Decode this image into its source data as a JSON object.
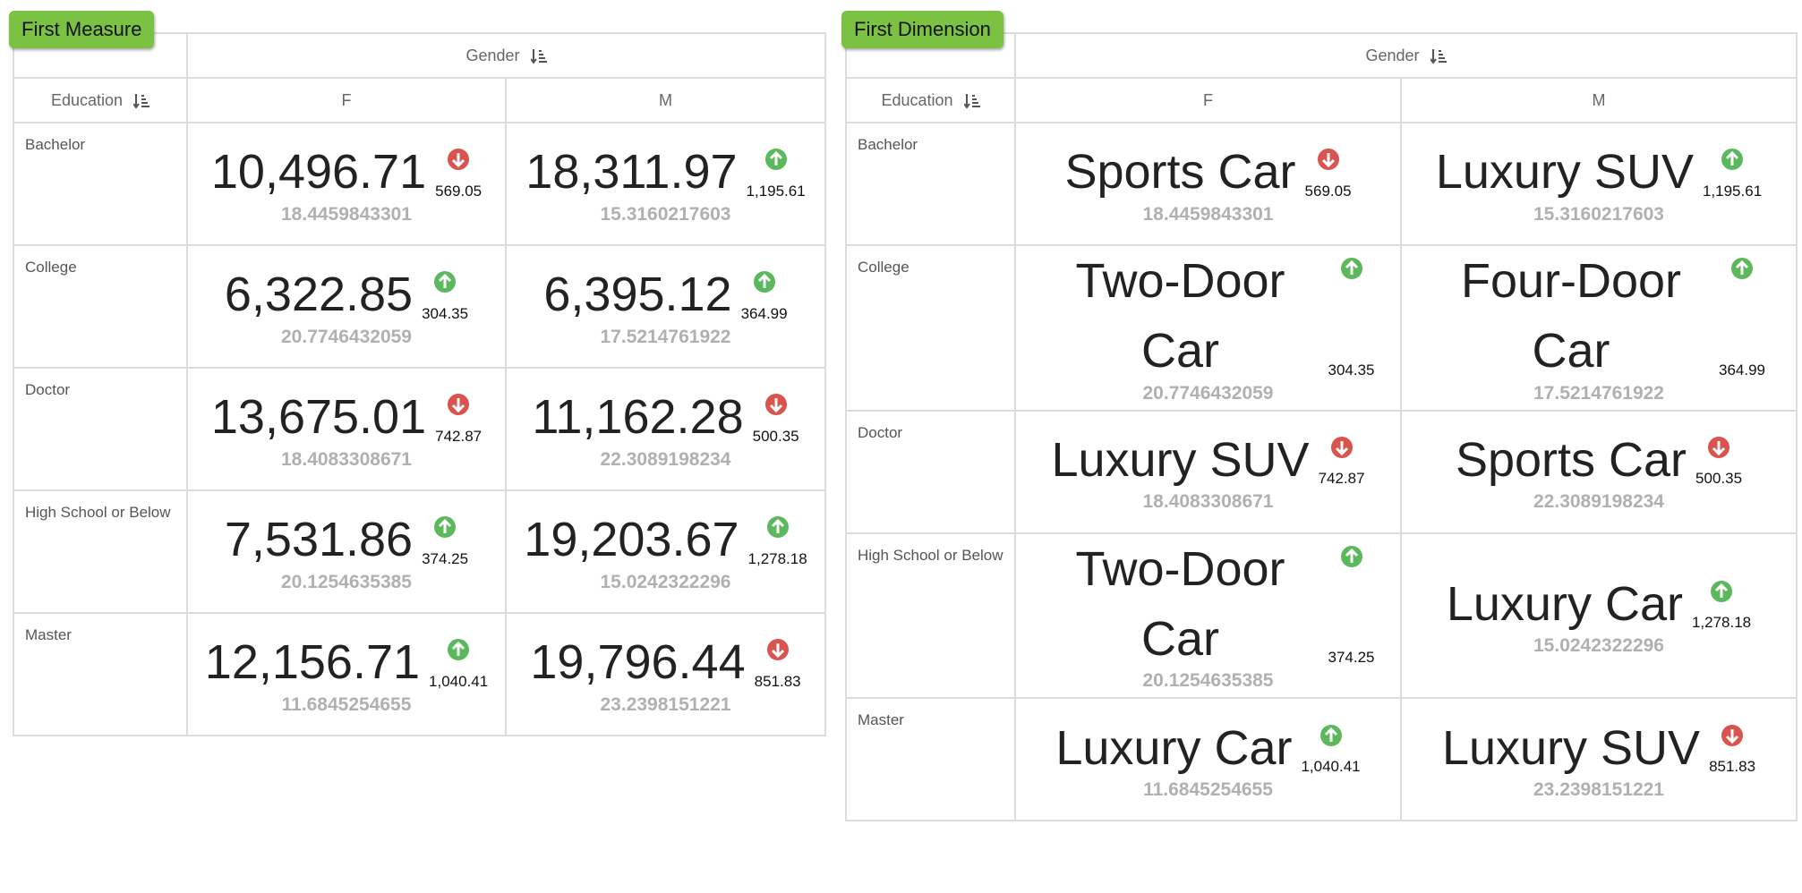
{
  "panels": [
    {
      "badge": "First Measure",
      "column_header": "Gender",
      "row_header": "Education",
      "columns": [
        "F",
        "M"
      ],
      "rows": [
        {
          "label": "Bachelor",
          "cells": [
            {
              "value": "10,496.71",
              "change": "569.05",
              "trend": "down",
              "sub": "18.4459843301"
            },
            {
              "value": "18,311.97",
              "change": "1,195.61",
              "trend": "up",
              "sub": "15.3160217603"
            }
          ]
        },
        {
          "label": "College",
          "cells": [
            {
              "value": "6,322.85",
              "change": "304.35",
              "trend": "up",
              "sub": "20.7746432059"
            },
            {
              "value": "6,395.12",
              "change": "364.99",
              "trend": "up",
              "sub": "17.5214761922"
            }
          ]
        },
        {
          "label": "Doctor",
          "cells": [
            {
              "value": "13,675.01",
              "change": "742.87",
              "trend": "down",
              "sub": "18.4083308671"
            },
            {
              "value": "11,162.28",
              "change": "500.35",
              "trend": "down",
              "sub": "22.3089198234"
            }
          ]
        },
        {
          "label": "High School or Below",
          "cells": [
            {
              "value": "7,531.86",
              "change": "374.25",
              "trend": "up",
              "sub": "20.1254635385"
            },
            {
              "value": "19,203.67",
              "change": "1,278.18",
              "trend": "up",
              "sub": "15.0242322296"
            }
          ]
        },
        {
          "label": "Master",
          "cells": [
            {
              "value": "12,156.71",
              "change": "1,040.41",
              "trend": "up",
              "sub": "11.6845254655"
            },
            {
              "value": "19,796.44",
              "change": "851.83",
              "trend": "down",
              "sub": "23.2398151221"
            }
          ]
        }
      ]
    },
    {
      "badge": "First Dimension",
      "column_header": "Gender",
      "row_header": "Education",
      "columns": [
        "F",
        "M"
      ],
      "rows": [
        {
          "label": "Bachelor",
          "cells": [
            {
              "value": "Sports Car",
              "change": "569.05",
              "trend": "down",
              "sub": "18.4459843301"
            },
            {
              "value": "Luxury SUV",
              "change": "1,195.61",
              "trend": "up",
              "sub": "15.3160217603"
            }
          ]
        },
        {
          "label": "College",
          "cells": [
            {
              "value": "Two-Door Car",
              "change": "304.35",
              "trend": "up",
              "sub": "20.7746432059"
            },
            {
              "value": "Four-Door Car",
              "change": "364.99",
              "trend": "up",
              "sub": "17.5214761922"
            }
          ]
        },
        {
          "label": "Doctor",
          "cells": [
            {
              "value": "Luxury SUV",
              "change": "742.87",
              "trend": "down",
              "sub": "18.4083308671"
            },
            {
              "value": "Sports Car",
              "change": "500.35",
              "trend": "down",
              "sub": "22.3089198234"
            }
          ]
        },
        {
          "label": "High School or Below",
          "cells": [
            {
              "value": "Two-Door Car",
              "change": "374.25",
              "trend": "up",
              "sub": "20.1254635385"
            },
            {
              "value": "Luxury Car",
              "change": "1,278.18",
              "trend": "up",
              "sub": "15.0242322296"
            }
          ]
        },
        {
          "label": "Master",
          "cells": [
            {
              "value": "Luxury Car",
              "change": "1,040.41",
              "trend": "up",
              "sub": "11.6845254655"
            },
            {
              "value": "Luxury SUV",
              "change": "851.83",
              "trend": "down",
              "sub": "23.2398151221"
            }
          ]
        }
      ]
    }
  ]
}
